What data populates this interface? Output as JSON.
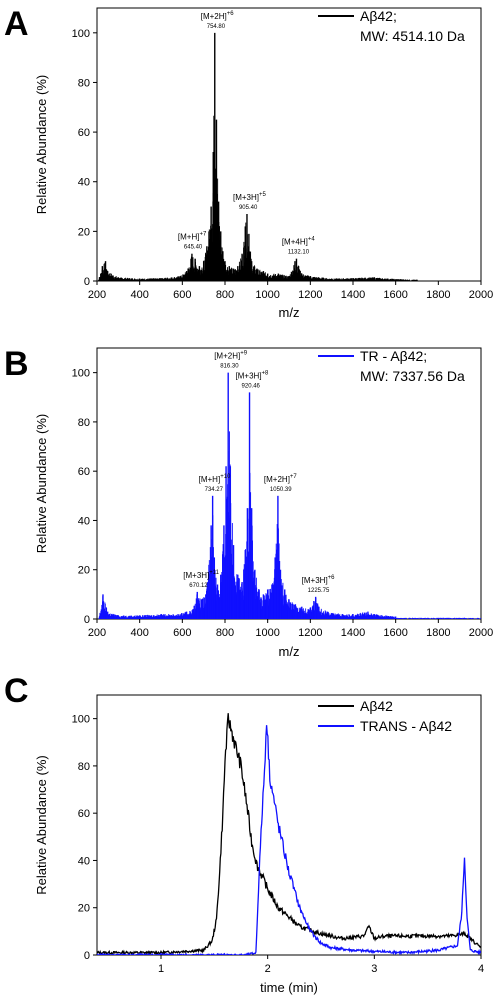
{
  "chart_data": [
    {
      "panel_letter": "A",
      "type": "bar",
      "xlabel": "m/z",
      "ylabel": "Relative Abundance (%)",
      "xlim": [
        200,
        2000
      ],
      "ylim": [
        0,
        110
      ],
      "xticks": [
        200,
        400,
        600,
        800,
        1000,
        1200,
        1400,
        1600,
        1800,
        2000
      ],
      "yticks": [
        0,
        20,
        40,
        60,
        80,
        100
      ],
      "series": [
        {
          "legend_lines": [
            "Aβ42;",
            "MW: 4514.10 Da"
          ],
          "color": "#000000",
          "peaks": [
            [
              225,
              6
            ],
            [
              240,
              8
            ],
            [
              250,
              4
            ],
            [
              300,
              1.5
            ],
            [
              400,
              1
            ],
            [
              500,
              1.2
            ],
            [
              590,
              2
            ],
            [
              620,
              4
            ],
            [
              645,
              11
            ],
            [
              660,
              9
            ],
            [
              680,
              6
            ],
            [
              700,
              8
            ],
            [
              715,
              14
            ],
            [
              725,
              20
            ],
            [
              735,
              30
            ],
            [
              745,
              52
            ],
            [
              752,
              100
            ],
            [
              760,
              65
            ],
            [
              770,
              32
            ],
            [
              780,
              20
            ],
            [
              790,
              12
            ],
            [
              800,
              8
            ],
            [
              820,
              6
            ],
            [
              840,
              5
            ],
            [
              860,
              6
            ],
            [
              880,
              11
            ],
            [
              895,
              22
            ],
            [
              903,
              27
            ],
            [
              912,
              19
            ],
            [
              925,
              8
            ],
            [
              950,
              5
            ],
            [
              980,
              4
            ],
            [
              1000,
              3
            ],
            [
              1050,
              3
            ],
            [
              1100,
              2
            ],
            [
              1128,
              8
            ],
            [
              1135,
              9
            ],
            [
              1145,
              6
            ],
            [
              1160,
              3
            ],
            [
              1200,
              2
            ],
            [
              1300,
              1
            ],
            [
              1500,
              1.5
            ],
            [
              1560,
              1
            ],
            [
              1700,
              0.5
            ]
          ]
        }
      ],
      "annotations": [
        {
          "ion": "[M+H]",
          "charge": "+7",
          "value": "645.40",
          "x": 645,
          "y": 11
        },
        {
          "ion": "[M+2H]",
          "charge": "+6",
          "value": "754.80",
          "x": 752,
          "y": 100
        },
        {
          "ion": "[M+3H]",
          "charge": "+5",
          "value": "905.40",
          "x": 903,
          "y": 27
        },
        {
          "ion": "[M+4H]",
          "charge": "+4",
          "value": "1132.10",
          "x": 1132,
          "y": 9
        }
      ]
    },
    {
      "panel_letter": "B",
      "type": "bar",
      "xlabel": "m/z",
      "ylabel": "Relative Abundance (%)",
      "xlim": [
        200,
        2000
      ],
      "ylim": [
        0,
        110
      ],
      "xticks": [
        200,
        400,
        600,
        800,
        1000,
        1200,
        1400,
        1600,
        1800,
        2000
      ],
      "yticks": [
        0,
        20,
        40,
        60,
        80,
        100
      ],
      "series": [
        {
          "legend_lines": [
            "TR - Aβ42;",
            "MW: 7337.56 Da"
          ],
          "color": "#1010ff",
          "peaks": [
            [
              228,
              10
            ],
            [
              250,
              3
            ],
            [
              300,
              1.5
            ],
            [
              400,
              1.5
            ],
            [
              500,
              2
            ],
            [
              580,
              2
            ],
            [
              620,
              3
            ],
            [
              650,
              4
            ],
            [
              670,
              11
            ],
            [
              690,
              8
            ],
            [
              710,
              10
            ],
            [
              725,
              22
            ],
            [
              735,
              38
            ],
            [
              742,
              50
            ],
            [
              750,
              25
            ],
            [
              765,
              14
            ],
            [
              780,
              18
            ],
            [
              795,
              38
            ],
            [
              805,
              62
            ],
            [
              815,
              100
            ],
            [
              825,
              62
            ],
            [
              840,
              30
            ],
            [
              860,
              18
            ],
            [
              880,
              15
            ],
            [
              895,
              28
            ],
            [
              905,
              45
            ],
            [
              915,
              92
            ],
            [
              925,
              45
            ],
            [
              940,
              20
            ],
            [
              960,
              12
            ],
            [
              980,
              10
            ],
            [
              1000,
              12
            ],
            [
              1020,
              14
            ],
            [
              1035,
              25
            ],
            [
              1048,
              50
            ],
            [
              1060,
              20
            ],
            [
              1080,
              12
            ],
            [
              1100,
              8
            ],
            [
              1130,
              6
            ],
            [
              1160,
              5
            ],
            [
              1190,
              4
            ],
            [
              1225,
              9
            ],
            [
              1240,
              5
            ],
            [
              1280,
              3
            ],
            [
              1350,
              2
            ],
            [
              1400,
              2
            ],
            [
              1470,
              3
            ],
            [
              1500,
              2
            ],
            [
              1600,
              1
            ]
          ]
        }
      ],
      "annotations": [
        {
          "ion": "[M+3H]",
          "charge": "+11",
          "value": "670.12",
          "x": 670,
          "y": 11
        },
        {
          "ion": "[M+H]",
          "charge": "+10",
          "value": "734.27",
          "x": 742,
          "y": 50
        },
        {
          "ion": "[M+2H]",
          "charge": "+9",
          "value": "816.30",
          "x": 815,
          "y": 100
        },
        {
          "ion": "[M+3H]",
          "charge": "+8",
          "value": "920.46",
          "x": 915,
          "y": 92
        },
        {
          "ion": "[M+2H]",
          "charge": "+7",
          "value": "1050.39",
          "x": 1048,
          "y": 50
        },
        {
          "ion": "[M+3H]",
          "charge": "+6",
          "value": "1225.75",
          "x": 1225,
          "y": 9
        }
      ]
    },
    {
      "panel_letter": "C",
      "type": "line",
      "xlabel": "time (min)",
      "ylabel": "Relative Abundance (%)",
      "xlim": [
        0.4,
        4.0
      ],
      "ylim": [
        0,
        110
      ],
      "xticks": [
        1,
        2,
        3,
        4
      ],
      "yticks": [
        0,
        20,
        40,
        60,
        80,
        100
      ],
      "legend_position": "top-right",
      "series": [
        {
          "name": "Aβ42",
          "color": "#000000",
          "x": [
            0.4,
            1.0,
            1.4,
            1.48,
            1.52,
            1.55,
            1.58,
            1.6,
            1.63,
            1.66,
            1.7,
            1.75,
            1.8,
            1.85,
            1.9,
            2.0,
            2.1,
            2.2,
            2.3,
            2.5,
            2.7,
            2.9,
            2.95,
            3.0,
            3.1,
            3.3,
            3.5,
            3.7,
            3.85,
            3.95,
            4.0
          ],
          "y": [
            1,
            1,
            2,
            6,
            15,
            35,
            60,
            82,
            100,
            95,
            88,
            80,
            65,
            48,
            38,
            28,
            20,
            16,
            12,
            9,
            7,
            8,
            12,
            7,
            8,
            8,
            8,
            8,
            9,
            5,
            3
          ]
        },
        {
          "name": "TRANS - Aβ42",
          "color": "#1010ff",
          "x": [
            0.4,
            1.8,
            1.89,
            1.92,
            1.95,
            1.97,
            1.99,
            2.02,
            2.05,
            2.1,
            2.15,
            2.2,
            2.3,
            2.4,
            2.5,
            2.6,
            2.8,
            3.0,
            3.3,
            3.6,
            3.78,
            3.82,
            3.845,
            3.87,
            3.9,
            4.0
          ],
          "y": [
            0,
            0,
            1,
            35,
            62,
            78,
            100,
            76,
            68,
            55,
            45,
            35,
            20,
            10,
            5,
            3,
            2,
            1.5,
            1,
            2,
            4,
            18,
            42,
            15,
            2,
            1
          ]
        }
      ]
    }
  ]
}
